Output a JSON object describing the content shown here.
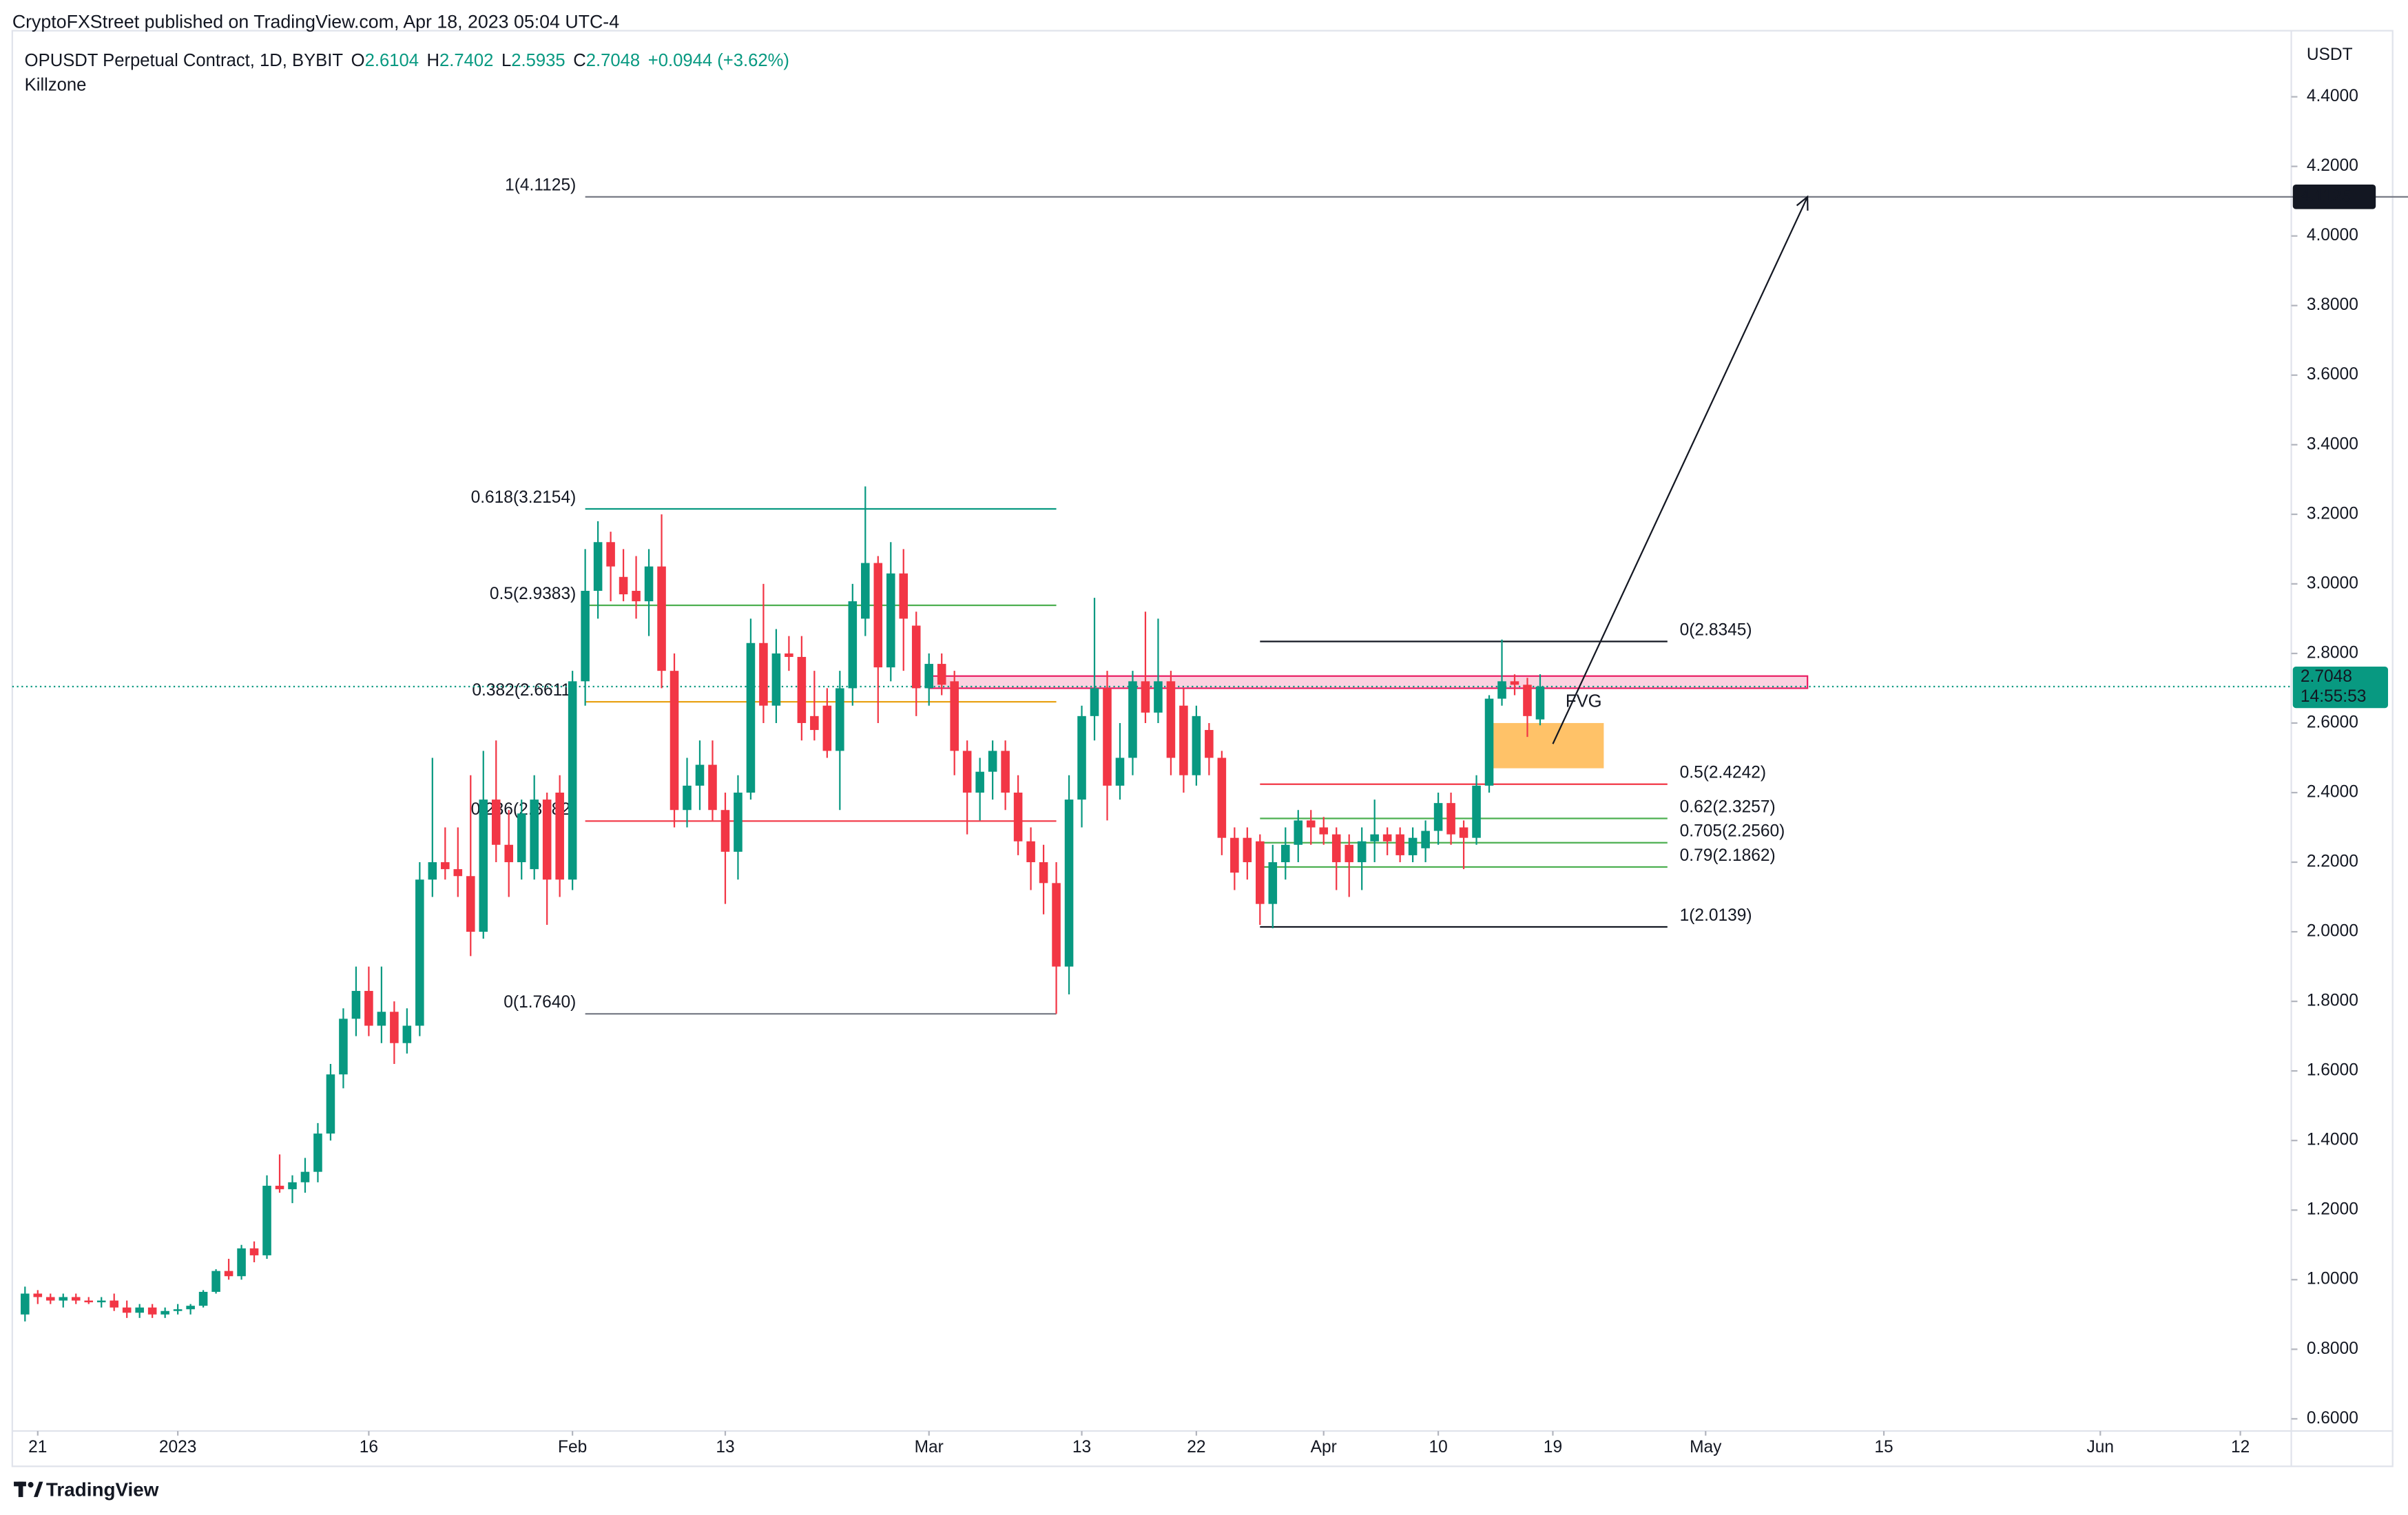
{
  "chart_data": {
    "type": "candlestick",
    "published": "CryptoFXStreet published on TradingView.com, Apr 18, 2023 05:04 UTC-4",
    "title": "OPUSDT Perpetual Contract, 1D, BYBIT",
    "ohlc_labels": [
      "O",
      "H",
      "L",
      "C"
    ],
    "change": "+0.0944 (+3.62%)",
    "indicator": "Killzone",
    "currency": "USDT",
    "countdown": "14:55:53",
    "brand": "TradingView",
    "up_color": "#089981",
    "down_color": "#f23645",
    "grid": false,
    "x": [
      "2022-12-20",
      "2022-12-21",
      "2022-12-22",
      "2022-12-23",
      "2022-12-24",
      "2022-12-25",
      "2022-12-26",
      "2022-12-27",
      "2022-12-28",
      "2022-12-29",
      "2022-12-30",
      "2022-12-31",
      "2023-01-01",
      "2023-01-02",
      "2023-01-03",
      "2023-01-04",
      "2023-01-05",
      "2023-01-06",
      "2023-01-07",
      "2023-01-08",
      "2023-01-09",
      "2023-01-10",
      "2023-01-11",
      "2023-01-12",
      "2023-01-13",
      "2023-01-14",
      "2023-01-15",
      "2023-01-16",
      "2023-01-17",
      "2023-01-18",
      "2023-01-19",
      "2023-01-20",
      "2023-01-21",
      "2023-01-22",
      "2023-01-23",
      "2023-01-24",
      "2023-01-25",
      "2023-01-26",
      "2023-01-27",
      "2023-01-28",
      "2023-01-29",
      "2023-01-30",
      "2023-01-31",
      "2023-02-01",
      "2023-02-02",
      "2023-02-03",
      "2023-02-04",
      "2023-02-05",
      "2023-02-06",
      "2023-02-07",
      "2023-02-08",
      "2023-02-09",
      "2023-02-10",
      "2023-02-11",
      "2023-02-12",
      "2023-02-13",
      "2023-02-14",
      "2023-02-15",
      "2023-02-16",
      "2023-02-17",
      "2023-02-18",
      "2023-02-19",
      "2023-02-20",
      "2023-02-21",
      "2023-02-22",
      "2023-02-23",
      "2023-02-24",
      "2023-02-25",
      "2023-02-26",
      "2023-02-27",
      "2023-02-28",
      "2023-03-01",
      "2023-03-02",
      "2023-03-03",
      "2023-03-04",
      "2023-03-05",
      "2023-03-06",
      "2023-03-07",
      "2023-03-08",
      "2023-03-09",
      "2023-03-10",
      "2023-03-11",
      "2023-03-12",
      "2023-03-13",
      "2023-03-14",
      "2023-03-15",
      "2023-03-16",
      "2023-03-17",
      "2023-03-18",
      "2023-03-19",
      "2023-03-20",
      "2023-03-21",
      "2023-03-22",
      "2023-03-23",
      "2023-03-24",
      "2023-03-25",
      "2023-03-26",
      "2023-03-27",
      "2023-03-28",
      "2023-03-29",
      "2023-03-30",
      "2023-03-31",
      "2023-04-01",
      "2023-04-02",
      "2023-04-03",
      "2023-04-04",
      "2023-04-05",
      "2023-04-06",
      "2023-04-07",
      "2023-04-08",
      "2023-04-09",
      "2023-04-10",
      "2023-04-11",
      "2023-04-12",
      "2023-04-13",
      "2023-04-14",
      "2023-04-15",
      "2023-04-16",
      "2023-04-17",
      "2023-04-18"
    ],
    "open": [
      0.9,
      0.96,
      0.95,
      0.94,
      0.95,
      0.94,
      0.935,
      0.94,
      0.92,
      0.905,
      0.92,
      0.9,
      0.91,
      0.915,
      0.925,
      0.965,
      1.025,
      1.01,
      1.09,
      1.07,
      1.27,
      1.26,
      1.28,
      1.31,
      1.42,
      1.59,
      1.75,
      1.83,
      1.73,
      1.77,
      1.68,
      1.73,
      2.15,
      2.2,
      2.18,
      2.16,
      2.0,
      2.38,
      2.25,
      2.2,
      2.18,
      2.38,
      2.4,
      2.15,
      2.72,
      2.98,
      3.12,
      3.02,
      2.98,
      2.95,
      3.05,
      2.75,
      2.35,
      2.42,
      2.48,
      2.35,
      2.23,
      2.4,
      2.83,
      2.65,
      2.8,
      2.79,
      2.62,
      2.65,
      2.52,
      2.7,
      2.9,
      3.06,
      2.76,
      3.03,
      2.88,
      2.7,
      2.77,
      2.72,
      2.52,
      2.4,
      2.46,
      2.52,
      2.4,
      2.26,
      2.2,
      2.14,
      1.9,
      2.38,
      2.62,
      2.7,
      2.42,
      2.5,
      2.72,
      2.63,
      2.72,
      2.65,
      2.45,
      2.58,
      2.5,
      2.27,
      2.27,
      2.26,
      2.08,
      2.2,
      2.25,
      2.32,
      2.3,
      2.28,
      2.25,
      2.2,
      2.26,
      2.28,
      2.28,
      2.22,
      2.24,
      2.29,
      2.37,
      2.3,
      2.27,
      2.42,
      2.67,
      2.72,
      2.71,
      2.6104
    ],
    "high": [
      0.98,
      0.97,
      0.96,
      0.96,
      0.96,
      0.95,
      0.95,
      0.96,
      0.94,
      0.93,
      0.93,
      0.92,
      0.93,
      0.93,
      0.97,
      1.03,
      1.06,
      1.1,
      1.11,
      1.3,
      1.36,
      1.3,
      1.35,
      1.45,
      1.62,
      1.78,
      1.9,
      1.9,
      1.9,
      1.8,
      1.78,
      2.2,
      2.5,
      2.3,
      2.3,
      2.45,
      2.52,
      2.55,
      2.35,
      2.38,
      2.45,
      2.4,
      2.45,
      2.75,
      3.1,
      3.18,
      3.15,
      3.1,
      3.08,
      3.1,
      3.2,
      2.8,
      2.5,
      2.55,
      2.55,
      2.4,
      2.45,
      2.9,
      3.0,
      2.87,
      2.85,
      2.85,
      2.75,
      2.7,
      2.75,
      3.0,
      3.28,
      3.08,
      3.12,
      3.1,
      2.92,
      2.8,
      2.8,
      2.75,
      2.55,
      2.5,
      2.55,
      2.55,
      2.45,
      2.3,
      2.25,
      2.2,
      2.45,
      2.65,
      2.96,
      2.75,
      2.6,
      2.75,
      2.92,
      2.9,
      2.75,
      2.7,
      2.65,
      2.6,
      2.52,
      2.3,
      2.3,
      2.28,
      2.25,
      2.3,
      2.35,
      2.35,
      2.33,
      2.3,
      2.28,
      2.3,
      2.38,
      2.3,
      2.3,
      2.3,
      2.32,
      2.4,
      2.4,
      2.32,
      2.45,
      2.68,
      2.84,
      2.74,
      2.73,
      2.7402
    ],
    "low": [
      0.88,
      0.93,
      0.93,
      0.92,
      0.93,
      0.93,
      0.92,
      0.91,
      0.89,
      0.89,
      0.89,
      0.89,
      0.9,
      0.9,
      0.92,
      0.96,
      1.0,
      1.0,
      1.05,
      1.06,
      1.25,
      1.22,
      1.25,
      1.28,
      1.4,
      1.55,
      1.7,
      1.7,
      1.68,
      1.62,
      1.65,
      1.7,
      2.1,
      2.15,
      2.1,
      1.93,
      1.98,
      2.2,
      2.1,
      2.15,
      2.15,
      2.02,
      2.1,
      2.12,
      2.65,
      2.9,
      2.95,
      2.95,
      2.9,
      2.85,
      2.7,
      2.3,
      2.3,
      2.35,
      2.32,
      2.08,
      2.15,
      2.38,
      2.6,
      2.6,
      2.75,
      2.55,
      2.55,
      2.5,
      2.35,
      2.65,
      2.85,
      2.6,
      2.72,
      2.75,
      2.62,
      2.65,
      2.68,
      2.45,
      2.28,
      2.32,
      2.38,
      2.35,
      2.22,
      2.12,
      2.05,
      1.764,
      1.82,
      2.3,
      2.55,
      2.32,
      2.38,
      2.45,
      2.6,
      2.6,
      2.45,
      2.4,
      2.42,
      2.45,
      2.22,
      2.12,
      2.15,
      2.02,
      2.01,
      2.15,
      2.2,
      2.25,
      2.25,
      2.12,
      2.1,
      2.12,
      2.2,
      2.22,
      2.2,
      2.2,
      2.2,
      2.25,
      2.25,
      2.18,
      2.25,
      2.4,
      2.65,
      2.68,
      2.56,
      2.5935
    ],
    "close": [
      0.96,
      0.95,
      0.94,
      0.95,
      0.94,
      0.935,
      0.94,
      0.92,
      0.905,
      0.92,
      0.9,
      0.91,
      0.915,
      0.925,
      0.965,
      1.025,
      1.01,
      1.09,
      1.07,
      1.27,
      1.26,
      1.28,
      1.31,
      1.42,
      1.59,
      1.75,
      1.83,
      1.73,
      1.77,
      1.68,
      1.73,
      2.15,
      2.2,
      2.18,
      2.16,
      2.0,
      2.38,
      2.25,
      2.2,
      2.34,
      2.38,
      2.15,
      2.15,
      2.72,
      2.98,
      3.12,
      3.05,
      2.97,
      2.95,
      3.05,
      2.75,
      2.35,
      2.42,
      2.48,
      2.35,
      2.23,
      2.4,
      2.83,
      2.65,
      2.8,
      2.79,
      2.6,
      2.58,
      2.52,
      2.7,
      2.95,
      3.06,
      2.76,
      3.03,
      2.9,
      2.7,
      2.77,
      2.71,
      2.52,
      2.4,
      2.46,
      2.52,
      2.4,
      2.26,
      2.2,
      2.14,
      1.9,
      2.38,
      2.62,
      2.7,
      2.42,
      2.5,
      2.72,
      2.63,
      2.72,
      2.5,
      2.45,
      2.62,
      2.5,
      2.27,
      2.17,
      2.2,
      2.08,
      2.2,
      2.25,
      2.32,
      2.3,
      2.28,
      2.2,
      2.2,
      2.26,
      2.28,
      2.26,
      2.22,
      2.27,
      2.29,
      2.37,
      2.28,
      2.27,
      2.42,
      2.67,
      2.72,
      2.71,
      2.62,
      2.7048
    ],
    "xlim": [
      "2022-12-19",
      "2023-06-16"
    ],
    "xticks": [
      {
        "value": "2022-12-21",
        "label": "21"
      },
      {
        "value": "2023-01-01",
        "label": "2023"
      },
      {
        "value": "2023-01-16",
        "label": "16"
      },
      {
        "value": "2023-02-01",
        "label": "Feb"
      },
      {
        "value": "2023-02-13",
        "label": "13"
      },
      {
        "value": "2023-03-01",
        "label": "Mar"
      },
      {
        "value": "2023-03-13",
        "label": "13"
      },
      {
        "value": "2023-03-22",
        "label": "22"
      },
      {
        "value": "2023-04-01",
        "label": "Apr"
      },
      {
        "value": "2023-04-10",
        "label": "10"
      },
      {
        "value": "2023-04-19",
        "label": "19"
      },
      {
        "value": "2023-05-01",
        "label": "May"
      },
      {
        "value": "2023-05-15",
        "label": "15"
      },
      {
        "value": "2023-06-01",
        "label": "Jun"
      },
      {
        "value": "2023-06-12",
        "label": "12"
      }
    ],
    "ylim": [
      0.565,
      4.59
    ],
    "yticks": [
      {
        "value": 0.6,
        "label": "0.6000"
      },
      {
        "value": 0.8,
        "label": "0.8000"
      },
      {
        "value": 1.0,
        "label": "1.0000"
      },
      {
        "value": 1.2,
        "label": "1.2000"
      },
      {
        "value": 1.4,
        "label": "1.4000"
      },
      {
        "value": 1.6,
        "label": "1.6000"
      },
      {
        "value": 1.8,
        "label": "1.8000"
      },
      {
        "value": 2.0,
        "label": "2.0000"
      },
      {
        "value": 2.2,
        "label": "2.2000"
      },
      {
        "value": 2.4,
        "label": "2.4000"
      },
      {
        "value": 2.6,
        "label": "2.6000"
      },
      {
        "value": 2.8,
        "label": "2.8000"
      },
      {
        "value": 3.0,
        "label": "3.0000"
      },
      {
        "value": 3.2,
        "label": "3.2000"
      },
      {
        "value": 3.4,
        "label": "3.4000"
      },
      {
        "value": 3.6,
        "label": "3.6000"
      },
      {
        "value": 3.8,
        "label": "3.8000"
      },
      {
        "value": 4.0,
        "label": "4.0000"
      },
      {
        "value": 4.2,
        "label": "4.2000"
      },
      {
        "value": 4.4,
        "label": "4.4000"
      }
    ],
    "fib_sets": [
      {
        "x": [
          "2023-02-02",
          "2023-03-11"
        ],
        "label_side": "left",
        "levels": [
          {
            "label": "1(4.1125)",
            "value": 4.1125,
            "color": "#787b86",
            "extend": true
          },
          {
            "label": "0.618(3.2154)",
            "value": 3.2154,
            "color": "#089981"
          },
          {
            "label": "0.5(2.9383)",
            "value": 2.9383,
            "color": "#4caf50"
          },
          {
            "label": "0.382(2.6611)",
            "value": 2.6611,
            "color": "#e8a317"
          },
          {
            "label": "0.236(2.3182)",
            "value": 2.3182,
            "color": "#f23645"
          },
          {
            "label": "0(1.7640)",
            "value": 1.764,
            "color": "#787b86"
          }
        ]
      },
      {
        "x": [
          "2023-03-27",
          "2023-04-28"
        ],
        "label_side": "right",
        "levels": [
          {
            "label": "0(2.8345)",
            "value": 2.8345,
            "color": "#131722"
          },
          {
            "label": "0.5(2.4242)",
            "value": 2.4242,
            "color": "#f23645"
          },
          {
            "label": "0.62(2.3257)",
            "value": 2.3257,
            "color": "#4caf50"
          },
          {
            "label": "0.705(2.2560)",
            "value": 2.256,
            "color": "#4caf50"
          },
          {
            "label": "0.79(2.1862)",
            "value": 2.1862,
            "color": "#4caf50"
          },
          {
            "label": "1(2.0139)",
            "value": 2.0139,
            "color": "#131722"
          }
        ]
      }
    ],
    "zones": [
      {
        "x": [
          "2023-03-01",
          "2023-05-09"
        ],
        "y": [
          2.7,
          2.735
        ],
        "color": "#e91e63"
      },
      {
        "x": [
          "2023-04-14",
          "2023-04-23"
        ],
        "y": [
          2.47,
          2.6
        ],
        "color": "#ffb74d"
      }
    ],
    "annotation": {
      "text": "FVG",
      "x": "2023-04-20",
      "y": 2.66
    },
    "arrow": {
      "x": [
        "2023-04-19",
        "2023-05-09"
      ],
      "y": [
        2.54,
        4.1125
      ],
      "color": "#131722"
    }
  }
}
